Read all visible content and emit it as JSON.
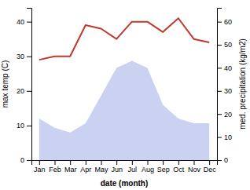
{
  "chart_data": {
    "type": "line",
    "xlabel": "date (month)",
    "ylabel": "max temp (C)",
    "y2label": "med. precipitation (kg/m2)",
    "categories": [
      "Jan",
      "Feb",
      "Mar",
      "Apr",
      "May",
      "Jun",
      "Jul",
      "Aug",
      "Sep",
      "Oct",
      "Nov",
      "Dec"
    ],
    "series": [
      {
        "type": "area",
        "axis": "y2",
        "color": "#c5cdf0",
        "values": [
          18,
          14,
          12,
          16,
          28,
          40,
          43,
          40,
          24,
          18,
          16,
          16
        ]
      },
      {
        "type": "line",
        "color": "#c0392b",
        "values": [
          29,
          30,
          30,
          39,
          38,
          35,
          40,
          40,
          37,
          41,
          35,
          34
        ]
      }
    ],
    "ylim": [
      0,
      44
    ],
    "yticks": [
      0,
      10,
      20,
      30,
      40
    ],
    "y2lim": [
      0,
      66
    ],
    "y2ticks": [
      0,
      10,
      20,
      30,
      40,
      50,
      60
    ]
  }
}
